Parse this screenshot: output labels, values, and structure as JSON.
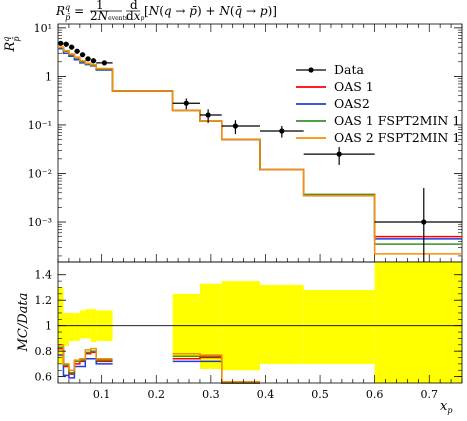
{
  "chart_data": [
    {
      "type": "line",
      "title": "R_p^q = 1/(2N_events) dN/dx_p [N(q → p̄) + N(q̄ → p)]",
      "ylabel": "R_p^q",
      "yscale": "log",
      "xlim": [
        0.02,
        0.76
      ],
      "ylim": [
        0.00015,
        12
      ],
      "yticks": [
        "10⁻³",
        "10⁻²",
        "10⁻¹",
        "1",
        "10¹"
      ],
      "legend_position": "right",
      "bin_edges": [
        0.02,
        0.03,
        0.04,
        0.05,
        0.06,
        0.07,
        0.08,
        0.09,
        0.12,
        0.23,
        0.28,
        0.32,
        0.39,
        0.47,
        0.6,
        0.76
      ],
      "data_points": {
        "name": "Data",
        "x": [
          0.025,
          0.035,
          0.045,
          0.055,
          0.065,
          0.075,
          0.085,
          0.105,
          0.255,
          0.295,
          0.345,
          0.43,
          0.535,
          0.69
        ],
        "y": [
          4.8,
          4.6,
          4.0,
          3.3,
          2.8,
          2.3,
          2.1,
          1.9,
          0.28,
          0.16,
          0.095,
          0.075,
          0.025,
          0.001
        ],
        "yerr": [
          0.5,
          0.5,
          0.4,
          0.35,
          0.3,
          0.25,
          0.22,
          0.2,
          0.07,
          0.05,
          0.03,
          0.02,
          0.01,
          0.004
        ]
      },
      "series": [
        {
          "name": "OAS 1",
          "color": "#ff0000",
          "values": [
            3.9,
            3.3,
            2.8,
            2.4,
            2.0,
            1.8,
            1.7,
            1.4,
            0.5,
            0.2,
            0.12,
            0.05,
            0.012,
            0.0035,
            0.0005
          ]
        },
        {
          "name": "OAS2",
          "color": "#1f3fdc",
          "values": [
            3.7,
            3.0,
            2.6,
            2.2,
            1.9,
            1.75,
            1.65,
            1.35,
            0.5,
            0.2,
            0.12,
            0.05,
            0.012,
            0.0035,
            0.00045
          ]
        },
        {
          "name": "OAS 1 FSPT2MIN 1",
          "color": "#3a8f2f",
          "values": [
            3.9,
            3.3,
            2.8,
            2.4,
            2.0,
            1.8,
            1.7,
            1.4,
            0.5,
            0.2,
            0.12,
            0.05,
            0.012,
            0.0037,
            0.00035
          ]
        },
        {
          "name": "OAS 2 FSPT2MIN 1",
          "color": "#ff8c00",
          "values": [
            4.0,
            3.4,
            2.9,
            2.5,
            2.1,
            1.85,
            1.75,
            1.45,
            0.5,
            0.2,
            0.12,
            0.05,
            0.012,
            0.0035,
            0.00022
          ]
        }
      ]
    },
    {
      "type": "line",
      "ylabel": "MC/Data",
      "xlabel": "x_p",
      "xlim": [
        0.02,
        0.76
      ],
      "ylim": [
        0.55,
        1.5
      ],
      "xticks": [
        "0.1",
        "0.2",
        "0.3",
        "0.4",
        "0.5",
        "0.6",
        "0.7"
      ],
      "yticks": [
        "0.6",
        "0.8",
        "1",
        "1.2",
        "1.4"
      ],
      "band_color": "#ffff00",
      "bin_edges": [
        0.02,
        0.03,
        0.04,
        0.05,
        0.06,
        0.07,
        0.08,
        0.09,
        0.12,
        0.23,
        0.28,
        0.32,
        0.39,
        0.47,
        0.6,
        0.76
      ],
      "data_band": {
        "low": [
          0.7,
          0.84,
          0.88,
          0.88,
          0.9,
          0.9,
          0.87,
          0.88,
          null,
          0.75,
          0.66,
          0.65,
          0.7,
          0.7,
          0.5
        ],
        "high": [
          1.3,
          1.1,
          1.1,
          1.1,
          1.12,
          1.13,
          1.13,
          1.12,
          null,
          1.25,
          1.33,
          1.35,
          1.32,
          1.28,
          1.5
        ]
      },
      "series": [
        {
          "name": "OAS 1",
          "color": "#ff0000",
          "values": [
            0.82,
            0.68,
            0.62,
            0.7,
            0.72,
            0.78,
            0.79,
            0.72,
            null,
            0.74,
            0.75,
            0.54,
            null,
            null,
            null
          ]
        },
        {
          "name": "OAS2",
          "color": "#1f3fdc",
          "values": [
            0.77,
            0.61,
            0.59,
            0.68,
            0.68,
            0.74,
            0.74,
            0.7,
            null,
            0.72,
            0.72,
            0.52,
            null,
            null,
            null
          ]
        },
        {
          "name": "OAS 1 FSPT2MIN 1",
          "color": "#3a8f2f",
          "values": [
            0.83,
            0.69,
            0.63,
            0.72,
            0.73,
            0.79,
            0.8,
            0.73,
            null,
            0.76,
            0.76,
            0.55,
            null,
            null,
            null
          ]
        },
        {
          "name": "OAS 2 FSPT2MIN 1",
          "color": "#ff8c00",
          "values": [
            0.85,
            0.7,
            0.65,
            0.73,
            0.74,
            0.81,
            0.82,
            0.74,
            null,
            0.78,
            0.77,
            0.56,
            null,
            null,
            null
          ]
        }
      ]
    }
  ]
}
